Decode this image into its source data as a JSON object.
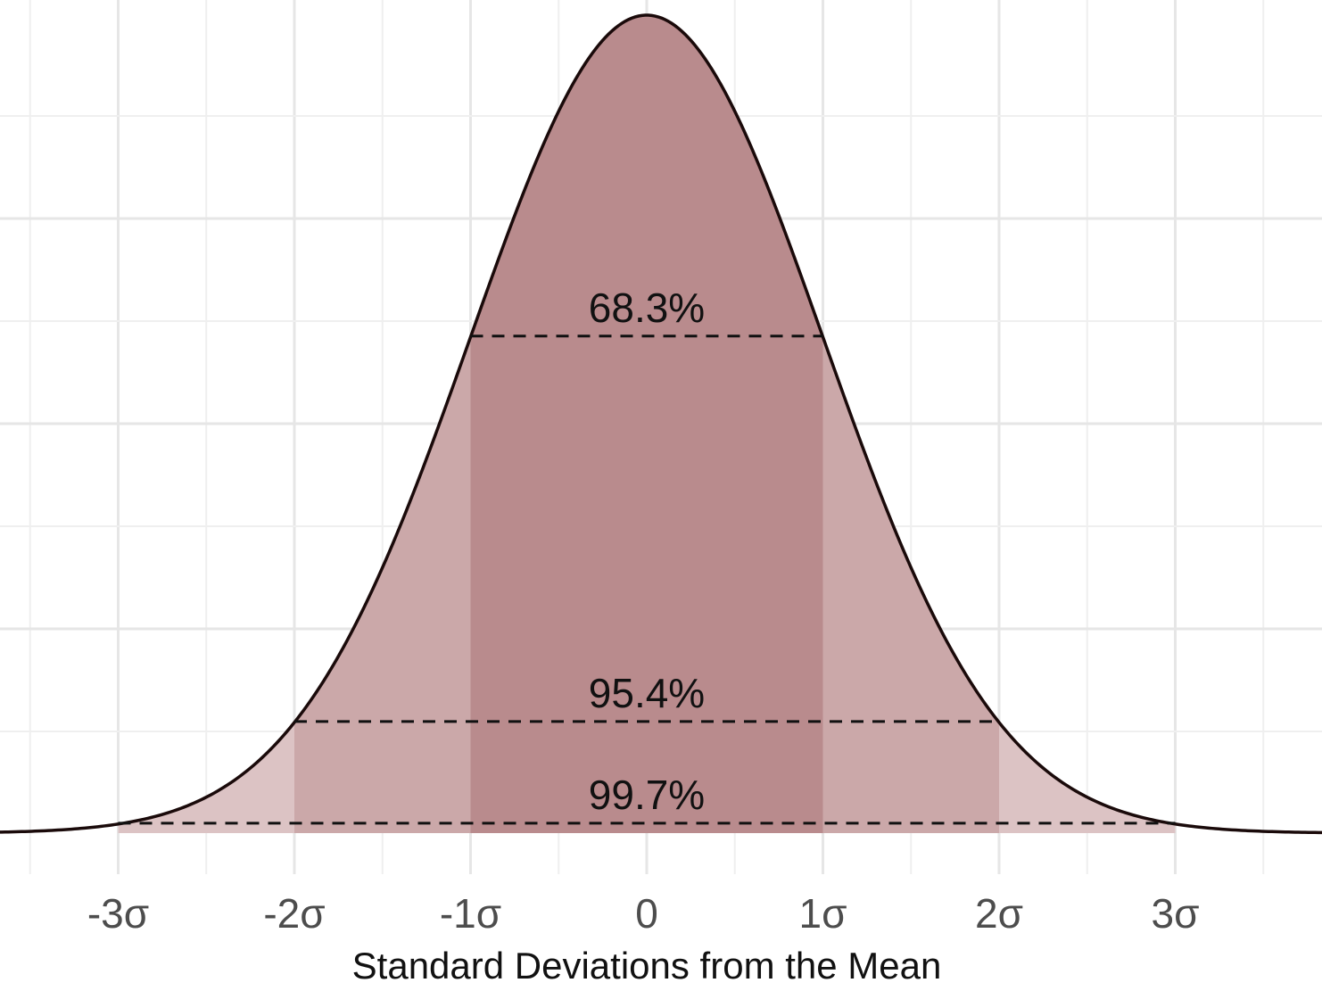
{
  "chart_data": {
    "type": "area",
    "title": "",
    "xlabel": "Standard Deviations from the Mean",
    "ylabel": "",
    "xlim": [
      -3.5,
      3.8
    ],
    "grid": true,
    "x_ticks": [
      {
        "value": -3,
        "label": "-3σ"
      },
      {
        "value": -2,
        "label": "-2σ"
      },
      {
        "value": -1,
        "label": "-1σ"
      },
      {
        "value": 0,
        "label": "0"
      },
      {
        "value": 1,
        "label": "1σ"
      },
      {
        "value": 2,
        "label": "2σ"
      },
      {
        "value": 3,
        "label": "3σ"
      }
    ],
    "curve": {
      "distribution": "standard normal",
      "mean": 0,
      "sd": 1
    },
    "bands": [
      {
        "from": -3,
        "to": 3,
        "label": "99.7%",
        "color": "#dcc3c4"
      },
      {
        "from": -2,
        "to": 2,
        "label": "95.4%",
        "color": "#cba8a9"
      },
      {
        "from": -1,
        "to": 1,
        "label": "68.3%",
        "color": "#b98b8d"
      }
    ],
    "curve_color": "#1a0a0a"
  }
}
